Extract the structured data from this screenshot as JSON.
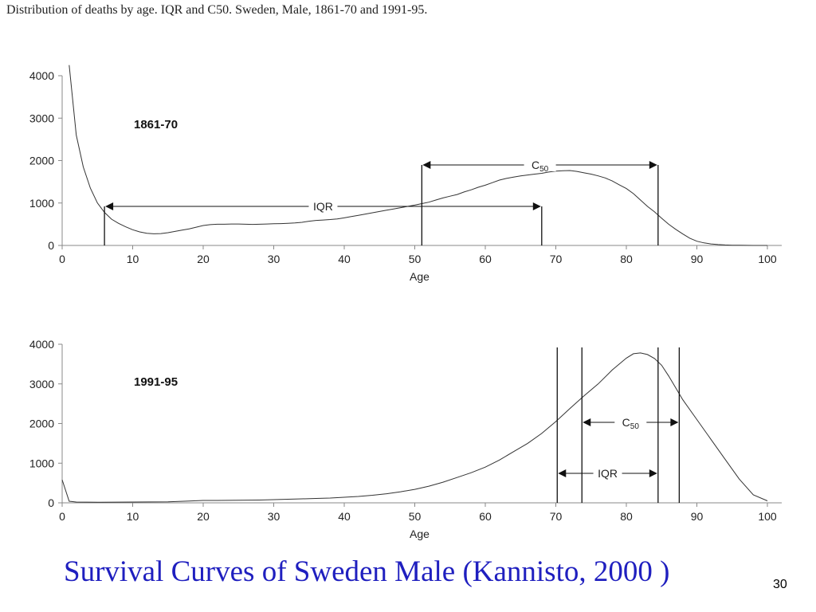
{
  "header": {
    "title": "Distribution of deaths by age. IQR and C50. Sweden, Male, 1861-70 and 1991-95."
  },
  "slide": {
    "caption": "Survival Curves of Sweden Male (Kannisto, 2000 )",
    "page_number": "30"
  },
  "chart_data": [
    {
      "type": "line",
      "title": "1861-70",
      "xlabel": "Age",
      "ylabel": "",
      "xlim": [
        0,
        100
      ],
      "ylim": [
        0,
        4000
      ],
      "x_ticks": [
        "0",
        "10",
        "20",
        "30",
        "40",
        "50",
        "60",
        "70",
        "80",
        "90",
        "100"
      ],
      "y_ticks": [
        "0",
        "1000",
        "2000",
        "3000",
        "4000"
      ],
      "grid": false,
      "series": [
        {
          "x": [
            1,
            2,
            3,
            4,
            5,
            6,
            7,
            8,
            9,
            10,
            11,
            12,
            13,
            14,
            15,
            16,
            17,
            18,
            19,
            20,
            21,
            22,
            23,
            24,
            25,
            26,
            27,
            28,
            29,
            30,
            31,
            32,
            33,
            34,
            35,
            36,
            37,
            38,
            39,
            40,
            41,
            42,
            43,
            44,
            45,
            46,
            47,
            48,
            49,
            50,
            51,
            52,
            53,
            54,
            55,
            56,
            57,
            58,
            59,
            60,
            61,
            62,
            63,
            64,
            65,
            66,
            67,
            68,
            69,
            70,
            71,
            72,
            73,
            74,
            75,
            76,
            77,
            78,
            79,
            80,
            81,
            82,
            83,
            84,
            85,
            86,
            87,
            88,
            89,
            90,
            91,
            92,
            93,
            94,
            95,
            96,
            97,
            98,
            99,
            100
          ],
          "y": [
            4250,
            2600,
            1850,
            1350,
            1000,
            780,
            620,
            520,
            440,
            370,
            320,
            285,
            275,
            280,
            300,
            330,
            360,
            390,
            430,
            470,
            490,
            500,
            500,
            505,
            505,
            500,
            495,
            500,
            505,
            510,
            515,
            520,
            530,
            545,
            570,
            590,
            600,
            610,
            625,
            650,
            680,
            710,
            740,
            770,
            800,
            830,
            860,
            890,
            920,
            950,
            985,
            1020,
            1070,
            1120,
            1160,
            1200,
            1260,
            1310,
            1370,
            1420,
            1480,
            1540,
            1580,
            1610,
            1640,
            1660,
            1680,
            1700,
            1730,
            1750,
            1760,
            1765,
            1745,
            1710,
            1680,
            1640,
            1590,
            1520,
            1430,
            1340,
            1220,
            1070,
            920,
            790,
            640,
            500,
            380,
            270,
            170,
            100,
            60,
            35,
            20,
            12,
            6,
            3,
            1,
            0,
            0,
            0
          ],
          "name": ""
        }
      ],
      "annotations": [
        {
          "label": "IQR",
          "from": 6,
          "to": 68
        },
        {
          "label": "C",
          "subscript": "50",
          "from": 51,
          "to": 84.5
        }
      ]
    },
    {
      "type": "line",
      "title": "1991-95",
      "xlabel": "Age",
      "ylabel": "",
      "xlim": [
        0,
        100
      ],
      "ylim": [
        0,
        4000
      ],
      "x_ticks": [
        "0",
        "10",
        "20",
        "30",
        "40",
        "50",
        "60",
        "70",
        "80",
        "90",
        "100"
      ],
      "y_ticks": [
        "0",
        "1000",
        "2000",
        "3000",
        "4000"
      ],
      "grid": false,
      "series": [
        {
          "x": [
            0,
            1,
            2,
            5,
            10,
            15,
            18,
            20,
            22,
            25,
            28,
            30,
            32,
            34,
            36,
            38,
            40,
            42,
            44,
            46,
            48,
            50,
            52,
            54,
            56,
            58,
            60,
            62,
            64,
            66,
            68,
            70,
            72,
            74,
            76,
            78,
            80,
            81,
            82,
            83,
            84,
            85,
            86,
            87,
            88,
            90,
            92,
            94,
            96,
            98,
            100
          ],
          "y": [
            580,
            40,
            20,
            15,
            20,
            25,
            45,
            60,
            60,
            65,
            70,
            80,
            90,
            100,
            110,
            120,
            140,
            160,
            190,
            230,
            280,
            340,
            420,
            520,
            640,
            760,
            900,
            1080,
            1290,
            1500,
            1750,
            2050,
            2380,
            2700,
            3000,
            3350,
            3650,
            3760,
            3780,
            3740,
            3640,
            3470,
            3200,
            2900,
            2600,
            2100,
            1600,
            1100,
            600,
            200,
            50
          ],
          "name": ""
        }
      ],
      "annotations": [
        {
          "label": "IQR",
          "from": 70.2,
          "to": 84.5
        },
        {
          "label": "C",
          "subscript": "50",
          "from": 73.7,
          "to": 87.5
        }
      ]
    }
  ]
}
